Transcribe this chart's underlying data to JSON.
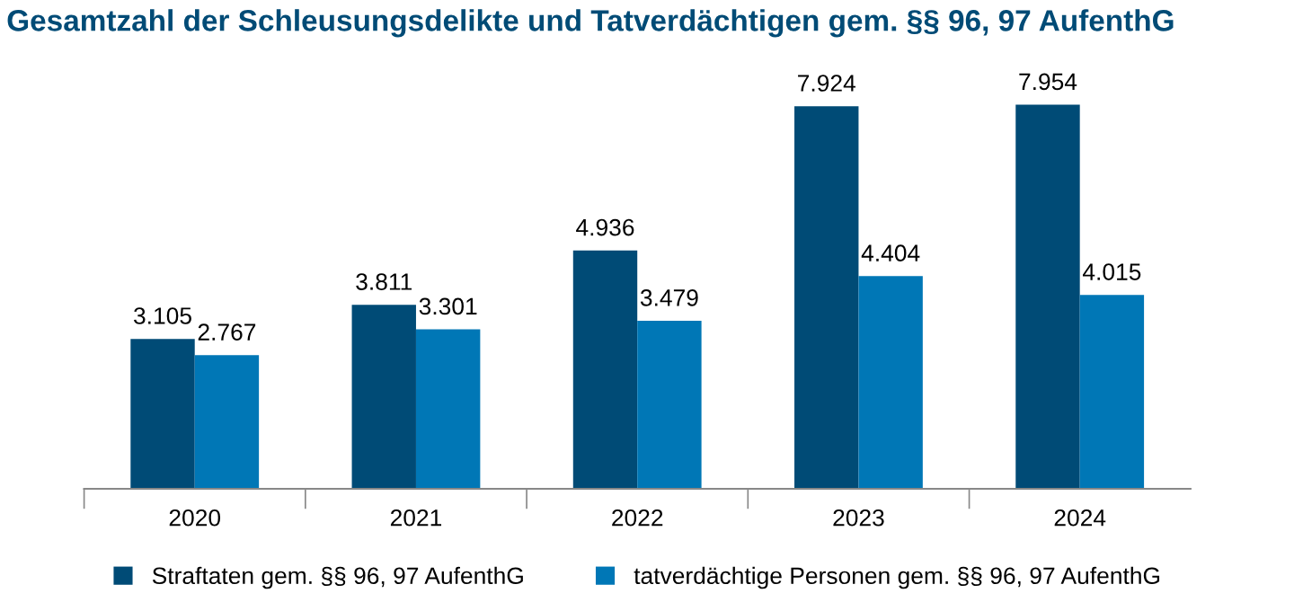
{
  "chart_data": {
    "type": "bar",
    "title": "Gesamtzahl der Schleusungsdelikte und Tatverdächtigen gem. §§ 96, 97 AufenthG",
    "categories": [
      "2020",
      "2021",
      "2022",
      "2023",
      "2024"
    ],
    "series": [
      {
        "name": "Straftaten gem. §§ 96, 97 AufenthG",
        "color": "#004b76",
        "values": [
          3105,
          3811,
          4936,
          7924,
          7954
        ],
        "value_labels": [
          "3.105",
          "3.811",
          "4.936",
          "7.924",
          "7.954"
        ]
      },
      {
        "name": "tatverdächtige Personen gem. §§ 96, 97 AufenthG",
        "color": "#0077b6",
        "values": [
          2767,
          3301,
          3479,
          4404,
          4015
        ],
        "value_labels": [
          "2.767",
          "3.301",
          "3.479",
          "4.404",
          "4.015"
        ]
      }
    ],
    "legend": "bottom"
  }
}
